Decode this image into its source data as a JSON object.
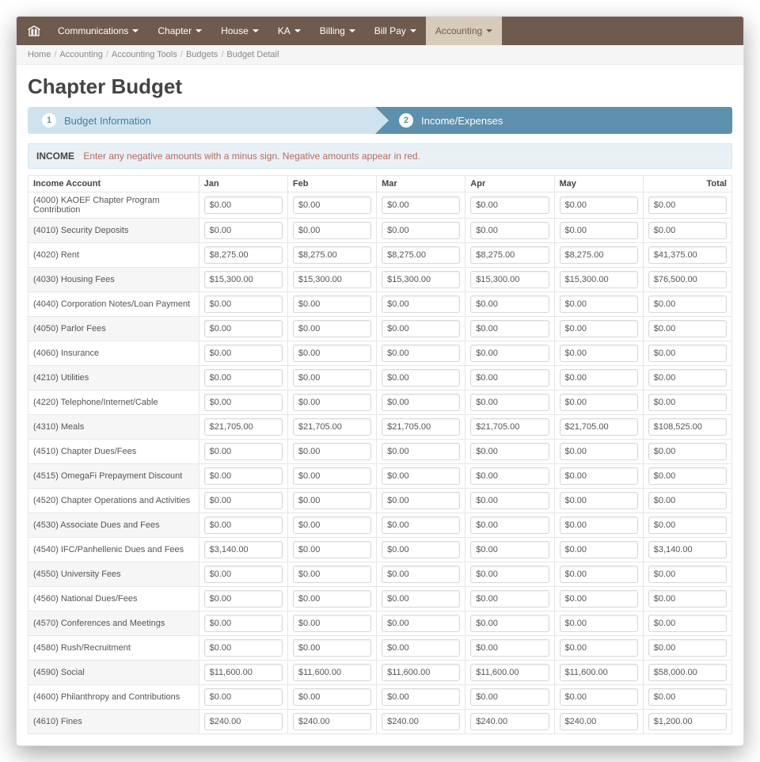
{
  "nav": {
    "items": [
      {
        "label": "Communications",
        "caret": true,
        "active": false
      },
      {
        "label": "Chapter",
        "caret": true,
        "active": false
      },
      {
        "label": "House",
        "caret": true,
        "active": false
      },
      {
        "label": "KA",
        "caret": true,
        "active": false
      },
      {
        "label": "Billing",
        "caret": true,
        "active": false
      },
      {
        "label": "Bill Pay",
        "caret": true,
        "active": false
      },
      {
        "label": "Accounting",
        "caret": true,
        "active": true
      }
    ]
  },
  "breadcrumb": {
    "items": [
      "Home",
      "Accounting",
      "Accounting Tools",
      "Budgets",
      "Budget Detail"
    ]
  },
  "page_title": "Chapter Budget",
  "wizard": {
    "step1": {
      "num": "1",
      "label": "Budget Information"
    },
    "step2": {
      "num": "2",
      "label": "Income/Expenses"
    }
  },
  "income_panel": {
    "label": "INCOME",
    "hint": "Enter any negative amounts with a minus sign. Negative amounts appear in red."
  },
  "table": {
    "columns": [
      "Income Account",
      "Jan",
      "Feb",
      "Mar",
      "Apr",
      "May",
      "Total"
    ],
    "rows": [
      {
        "acct": "(4000) KAOEF Chapter Program Contribution",
        "vals": [
          "$0.00",
          "$0.00",
          "$0.00",
          "$0.00",
          "$0.00"
        ],
        "total": "$0.00"
      },
      {
        "acct": "(4010) Security Deposits",
        "vals": [
          "$0.00",
          "$0.00",
          "$0.00",
          "$0.00",
          "$0.00"
        ],
        "total": "$0.00"
      },
      {
        "acct": "(4020) Rent",
        "vals": [
          "$8,275.00",
          "$8,275.00",
          "$8,275.00",
          "$8,275.00",
          "$8,275.00"
        ],
        "total": "$41,375.00"
      },
      {
        "acct": "(4030) Housing Fees",
        "vals": [
          "$15,300.00",
          "$15,300.00",
          "$15,300.00",
          "$15,300.00",
          "$15,300.00"
        ],
        "total": "$76,500.00"
      },
      {
        "acct": "(4040) Corporation Notes/Loan Payment",
        "vals": [
          "$0.00",
          "$0.00",
          "$0.00",
          "$0.00",
          "$0.00"
        ],
        "total": "$0.00"
      },
      {
        "acct": "(4050) Parlor Fees",
        "vals": [
          "$0.00",
          "$0.00",
          "$0.00",
          "$0.00",
          "$0.00"
        ],
        "total": "$0.00"
      },
      {
        "acct": "(4060) Insurance",
        "vals": [
          "$0.00",
          "$0.00",
          "$0.00",
          "$0.00",
          "$0.00"
        ],
        "total": "$0.00"
      },
      {
        "acct": "(4210) Utilities",
        "vals": [
          "$0.00",
          "$0.00",
          "$0.00",
          "$0.00",
          "$0.00"
        ],
        "total": "$0.00"
      },
      {
        "acct": "(4220) Telephone/Internet/Cable",
        "vals": [
          "$0.00",
          "$0.00",
          "$0.00",
          "$0.00",
          "$0.00"
        ],
        "total": "$0.00"
      },
      {
        "acct": "(4310) Meals",
        "vals": [
          "$21,705.00",
          "$21,705.00",
          "$21,705.00",
          "$21,705.00",
          "$21,705.00"
        ],
        "total": "$108,525.00"
      },
      {
        "acct": "(4510) Chapter Dues/Fees",
        "vals": [
          "$0.00",
          "$0.00",
          "$0.00",
          "$0.00",
          "$0.00"
        ],
        "total": "$0.00"
      },
      {
        "acct": "(4515) OmegaFi Prepayment Discount",
        "vals": [
          "$0.00",
          "$0.00",
          "$0.00",
          "$0.00",
          "$0.00"
        ],
        "total": "$0.00"
      },
      {
        "acct": "(4520) Chapter Operations and Activities",
        "vals": [
          "$0.00",
          "$0.00",
          "$0.00",
          "$0.00",
          "$0.00"
        ],
        "total": "$0.00"
      },
      {
        "acct": "(4530) Associate Dues and Fees",
        "vals": [
          "$0.00",
          "$0.00",
          "$0.00",
          "$0.00",
          "$0.00"
        ],
        "total": "$0.00"
      },
      {
        "acct": "(4540) IFC/Panhellenic Dues and Fees",
        "vals": [
          "$3,140.00",
          "$0.00",
          "$0.00",
          "$0.00",
          "$0.00"
        ],
        "total": "$3,140.00"
      },
      {
        "acct": "(4550) University Fees",
        "vals": [
          "$0.00",
          "$0.00",
          "$0.00",
          "$0.00",
          "$0.00"
        ],
        "total": "$0.00"
      },
      {
        "acct": "(4560) National Dues/Fees",
        "vals": [
          "$0.00",
          "$0.00",
          "$0.00",
          "$0.00",
          "$0.00"
        ],
        "total": "$0.00"
      },
      {
        "acct": "(4570) Conferences and Meetings",
        "vals": [
          "$0.00",
          "$0.00",
          "$0.00",
          "$0.00",
          "$0.00"
        ],
        "total": "$0.00"
      },
      {
        "acct": "(4580) Rush/Recruitment",
        "vals": [
          "$0.00",
          "$0.00",
          "$0.00",
          "$0.00",
          "$0.00"
        ],
        "total": "$0.00"
      },
      {
        "acct": "(4590) Social",
        "vals": [
          "$11,600.00",
          "$11,600.00",
          "$11,600.00",
          "$11,600.00",
          "$11,600.00"
        ],
        "total": "$58,000.00"
      },
      {
        "acct": "(4600) Philanthropy and Contributions",
        "vals": [
          "$0.00",
          "$0.00",
          "$0.00",
          "$0.00",
          "$0.00"
        ],
        "total": "$0.00"
      },
      {
        "acct": "(4610) Fines",
        "vals": [
          "$240.00",
          "$240.00",
          "$240.00",
          "$240.00",
          "$240.00"
        ],
        "total": "$1,200.00"
      }
    ]
  },
  "colors": {
    "nav_bg": "#6f5a4e",
    "nav_active_bg": "#d7cbb9",
    "wizard_inactive_bg": "#cfe3ef",
    "wizard_inactive_text": "#3f7fa5",
    "wizard_active_bg": "#5d90ad",
    "income_panel_bg": "#eaf1f6",
    "hint_text": "#b56a5a"
  }
}
